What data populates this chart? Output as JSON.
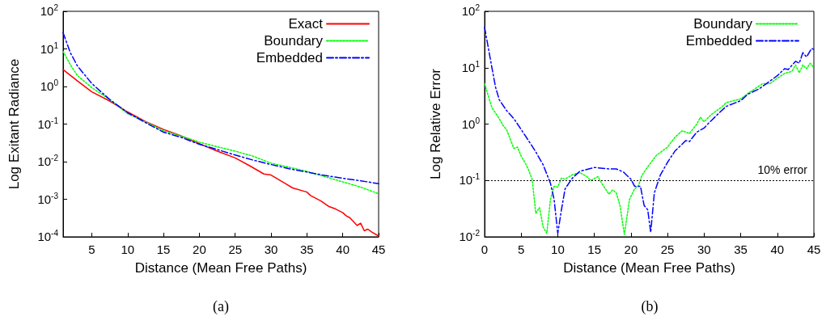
{
  "chart_data": [
    {
      "type": "line",
      "xlabel": "Distance (Mean Free Paths)",
      "ylabel": "Log Exitant Radiance",
      "log": true,
      "legend": "top right",
      "grid": false,
      "xlim": [
        1,
        45
      ],
      "xticks": [
        5,
        10,
        15,
        20,
        25,
        30,
        35,
        40,
        45
      ],
      "ylim": [
        0.0001,
        100
      ],
      "yticks": [
        {
          "value": 0.0001,
          "label": "10$^{-4}$"
        },
        {
          "value": 0.001,
          "label": "10$^{-3}$"
        },
        {
          "value": 0.01,
          "label": "10$^{-2}$"
        },
        {
          "value": 0.1,
          "label": "10$^{-1}$"
        },
        {
          "value": 1,
          "label": "10$^{0}$"
        },
        {
          "value": 10,
          "label": "10$^{1}$"
        },
        {
          "value": 100,
          "label": "10$^{2}$"
        }
      ],
      "annotations": [
        "(a)"
      ],
      "series": [
        {
          "name": "Exact",
          "color": "#ff0000",
          "line_style": "solid",
          "x": [
            1,
            3,
            5,
            7.5,
            10,
            12.5,
            15,
            17.5,
            20,
            22.5,
            25,
            27,
            29,
            30,
            32,
            33,
            35,
            35.5,
            37,
            38,
            39,
            40,
            40.5,
            41,
            42,
            42.5,
            43,
            43.5,
            44,
            45
          ],
          "values": [
            2.8,
            1.4,
            0.72,
            0.41,
            0.21,
            0.117,
            0.072,
            0.048,
            0.03,
            0.019,
            0.0126,
            0.0078,
            0.0047,
            0.0044,
            0.0026,
            0.002,
            0.00155,
            0.00126,
            0.00089,
            0.00065,
            0.00055,
            0.00044,
            0.00036,
            0.00032,
            0.0002,
            0.00023,
            0.000145,
            0.00016,
            0.000135,
            0.000105
          ]
        },
        {
          "name": "Boundary",
          "color": "#00ff00",
          "line_style": "dotted",
          "x": [
            1,
            2,
            3,
            5,
            7.5,
            10,
            12.5,
            15,
            17.5,
            20,
            22.5,
            25,
            27.5,
            30,
            32.5,
            35,
            37.5,
            40,
            42.5,
            45
          ],
          "values": [
            8.6,
            3.8,
            1.95,
            0.93,
            0.45,
            0.19,
            0.114,
            0.066,
            0.048,
            0.033,
            0.025,
            0.019,
            0.014,
            0.0091,
            0.0071,
            0.0055,
            0.004,
            0.0029,
            0.0021,
            0.0014
          ]
        },
        {
          "name": "Embedded",
          "color": "#0000ff",
          "line_style": "dashed",
          "x": [
            1,
            2,
            3,
            5,
            7.5,
            10,
            12.5,
            15,
            17.5,
            20,
            22.5,
            25,
            27.5,
            30,
            32.5,
            35,
            37.5,
            40,
            42.5,
            45
          ],
          "values": [
            27,
            8,
            3.5,
            1.2,
            0.45,
            0.2,
            0.109,
            0.061,
            0.044,
            0.029,
            0.021,
            0.015,
            0.011,
            0.0084,
            0.0065,
            0.0053,
            0.0043,
            0.0036,
            0.0031,
            0.0026
          ]
        }
      ]
    },
    {
      "type": "line",
      "xlabel": "Distance (Mean Free Paths)",
      "ylabel": "Log Relative Error",
      "log": true,
      "legend": "top right",
      "grid": false,
      "xlim": [
        0,
        45
      ],
      "xticks": [
        0,
        5,
        10,
        15,
        20,
        25,
        30,
        35,
        40,
        45
      ],
      "ylim": [
        0.01,
        100
      ],
      "yticks": [
        {
          "value": 0.01,
          "label": "10$^{-2}$"
        },
        {
          "value": 0.1,
          "label": "10$^{-1}$"
        },
        {
          "value": 1,
          "label": "10$^{0}$"
        },
        {
          "value": 10,
          "label": "10$^{1}$"
        },
        {
          "value": 100,
          "label": "10$^{2}$"
        }
      ],
      "ref_lines": [
        {
          "axis": "y",
          "value": 0.1,
          "label": "10% error",
          "color": "#000000",
          "line_style": "dotted"
        }
      ],
      "annotations": [
        "(b)"
      ],
      "series": [
        {
          "name": "Boundary",
          "color": "#00ff00",
          "line_style": "dotted",
          "x": [
            0,
            1,
            2,
            2.5,
            3,
            4,
            4.5,
            5,
            5.5,
            6,
            6.5,
            7,
            7.5,
            8,
            8.5,
            9,
            9.5,
            10,
            10.5,
            11,
            12,
            13,
            14,
            14.5,
            15.5,
            16,
            17,
            17.5,
            18,
            18.5,
            19.1,
            19.8,
            20.5,
            21,
            21.5,
            22.5,
            23.5,
            25,
            26,
            27,
            28,
            29,
            29.5,
            30,
            31,
            32.5,
            33,
            35,
            36,
            38,
            39,
            40,
            41,
            42,
            42.5,
            43,
            43.5,
            44,
            44.5,
            45
          ],
          "values": [
            5.2,
            1.95,
            1.25,
            0.95,
            0.8,
            0.37,
            0.39,
            0.27,
            0.21,
            0.155,
            0.105,
            0.026,
            0.033,
            0.015,
            0.0115,
            0.046,
            0.079,
            0.076,
            0.11,
            0.105,
            0.126,
            0.138,
            0.117,
            0.1,
            0.117,
            0.089,
            0.057,
            0.068,
            0.06,
            0.036,
            0.011,
            0.046,
            0.071,
            0.079,
            0.123,
            0.19,
            0.28,
            0.39,
            0.58,
            0.76,
            0.68,
            1.0,
            1.32,
            1.1,
            1.48,
            2.05,
            2.4,
            2.8,
            3.5,
            5.2,
            5.2,
            6.5,
            7.9,
            8.6,
            11.2,
            8.1,
            11.2,
            9.6,
            12,
            10
          ]
        },
        {
          "name": "Embedded",
          "color": "#0000ff",
          "line_style": "dashed",
          "x": [
            0,
            1,
            1.5,
            2,
            3,
            4,
            5,
            6,
            7,
            8,
            9,
            9.5,
            10,
            10.5,
            11,
            12,
            13,
            15,
            17,
            18,
            19,
            20,
            20.5,
            21.3,
            21.8,
            22.3,
            22.7,
            23.2,
            24,
            25,
            26,
            27.5,
            28,
            29,
            30,
            30.5,
            32,
            33,
            35,
            36,
            37.5,
            38.5,
            40,
            41,
            41.5,
            42.5,
            43,
            43.5,
            44,
            44.7,
            45
          ],
          "values": [
            52,
            10,
            4.5,
            2.7,
            1.74,
            1.25,
            0.8,
            0.51,
            0.32,
            0.19,
            0.089,
            0.046,
            0.0115,
            0.03,
            0.071,
            0.11,
            0.145,
            0.17,
            0.16,
            0.16,
            0.14,
            0.105,
            0.079,
            0.079,
            0.036,
            0.03,
            0.012,
            0.06,
            0.123,
            0.21,
            0.33,
            0.51,
            0.49,
            0.72,
            0.85,
            1.0,
            1.55,
            2.05,
            2.6,
            3.4,
            4.2,
            5.2,
            7.2,
            9.6,
            9.3,
            13,
            12,
            18.5,
            15.5,
            22,
            21
          ]
        }
      ]
    }
  ]
}
